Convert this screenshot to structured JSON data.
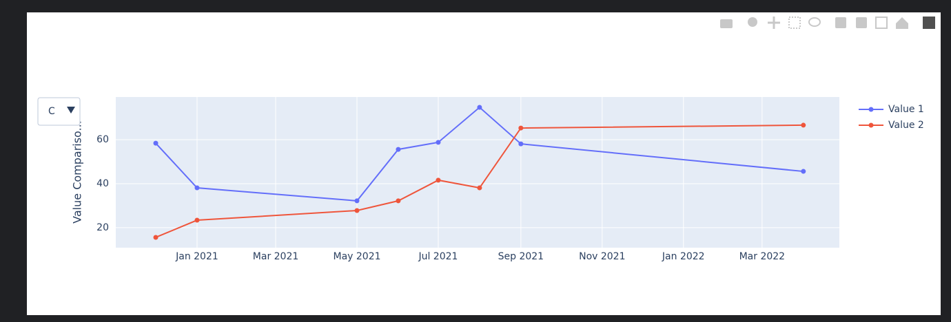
{
  "chart_data": {
    "type": "line",
    "y_label": "Value Compariso...",
    "dropdown": {
      "label": "C"
    },
    "x": [
      "2020-12",
      "2021-01",
      "2021-05",
      "2021-06",
      "2021-07",
      "2021-08",
      "2021-09",
      "2022-04"
    ],
    "series": [
      {
        "name": "Value 1",
        "color": "#636efa",
        "values": [
          58.4,
          38.1,
          32.2,
          55.6,
          58.8,
          74.7,
          58.1,
          45.6
        ]
      },
      {
        "name": "Value 2",
        "color": "#ef553b",
        "values": [
          15.6,
          23.4,
          27.8,
          32.2,
          41.6,
          38.1,
          65.3,
          66.6
        ]
      }
    ],
    "xlim": [
      "2020-11-01",
      "2022-04-28"
    ],
    "xticks": [
      {
        "value": "2021-01",
        "label": "Jan 2021"
      },
      {
        "value": "2021-03",
        "label": "Mar 2021"
      },
      {
        "value": "2021-05",
        "label": "May 2021"
      },
      {
        "value": "2021-07",
        "label": "Jul 2021"
      },
      {
        "value": "2021-09",
        "label": "Sep 2021"
      },
      {
        "value": "2021-11",
        "label": "Nov 2021"
      },
      {
        "value": "2022-01",
        "label": "Jan 2022"
      },
      {
        "value": "2022-03",
        "label": "Mar 2022"
      }
    ],
    "ylim": [
      10.9,
      79.4
    ],
    "yticks": [
      20,
      40,
      60
    ],
    "grid": true,
    "legend": "right"
  }
}
